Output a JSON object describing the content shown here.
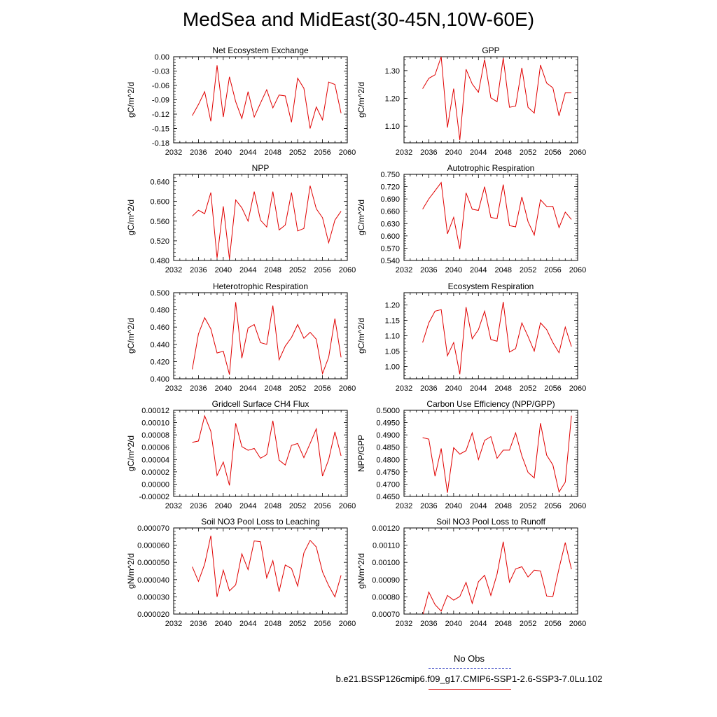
{
  "title": "MedSea and MidEast(30-45N,10W-60E)",
  "legend": {
    "obs_label": "No Obs",
    "run_label": "b.e21.BSSP126cmip6.f09_g17.CMIP6-SSP1-2.6-SSP3-7.0Lu.102",
    "obs_color": "#4a55c8",
    "run_color": "#e00000"
  },
  "chart_data": [
    {
      "type": "line",
      "title": "Net Ecosystem Exchange",
      "ylabel": "gC/m^2/d",
      "xlim": [
        2032,
        2060
      ],
      "ylim": [
        -0.18,
        0.0
      ],
      "xticks": [
        "2032",
        "2036",
        "2040",
        "2044",
        "2048",
        "2052",
        "2056",
        "2060"
      ],
      "yticks": [
        "0.00",
        "-0.03",
        "-0.06",
        "-0.09",
        "-0.12",
        "-0.15",
        "-0.18"
      ],
      "x": [
        2035,
        2036,
        2037,
        2038,
        2039,
        2040,
        2041,
        2042,
        2043,
        2044,
        2045,
        2046,
        2047,
        2048,
        2049,
        2050,
        2051,
        2052,
        2053,
        2054,
        2055,
        2056,
        2057,
        2058,
        2059
      ],
      "y": [
        -0.123,
        -0.1,
        -0.073,
        -0.135,
        -0.018,
        -0.126,
        -0.042,
        -0.094,
        -0.129,
        -0.073,
        -0.126,
        -0.097,
        -0.069,
        -0.107,
        -0.08,
        -0.082,
        -0.137,
        -0.045,
        -0.066,
        -0.15,
        -0.105,
        -0.132,
        -0.053,
        -0.058,
        -0.118
      ]
    },
    {
      "type": "line",
      "title": "GPP",
      "ylabel": "gC/m^2/d",
      "xlim": [
        2032,
        2060
      ],
      "ylim": [
        1.04,
        1.35
      ],
      "xticks": [
        "2032",
        "2036",
        "2040",
        "2044",
        "2048",
        "2052",
        "2056",
        "2060"
      ],
      "yticks": [
        "1.30",
        "1.20",
        "1.10"
      ],
      "ytick_values": [
        1.3,
        1.2,
        1.1
      ],
      "x": [
        2035,
        2036,
        2037,
        2038,
        2039,
        2040,
        2041,
        2042,
        2043,
        2044,
        2045,
        2046,
        2047,
        2048,
        2049,
        2050,
        2051,
        2052,
        2053,
        2054,
        2055,
        2056,
        2057,
        2058,
        2059
      ],
      "y": [
        1.235,
        1.272,
        1.285,
        1.35,
        1.095,
        1.235,
        1.05,
        1.305,
        1.252,
        1.222,
        1.34,
        1.202,
        1.188,
        1.345,
        1.168,
        1.172,
        1.31,
        1.168,
        1.147,
        1.32,
        1.255,
        1.238,
        1.137,
        1.22,
        1.22
      ]
    },
    {
      "type": "line",
      "title": "NPP",
      "ylabel": "gC/m^2/d",
      "xlim": [
        2032,
        2060
      ],
      "ylim": [
        0.48,
        0.655
      ],
      "xticks": [
        "2032",
        "2036",
        "2040",
        "2044",
        "2048",
        "2052",
        "2056",
        "2060"
      ],
      "yticks": [
        "0.640",
        "0.600",
        "0.560",
        "0.520",
        "0.480"
      ],
      "ytick_values": [
        0.64,
        0.6,
        0.56,
        0.52,
        0.48
      ],
      "x": [
        2035,
        2036,
        2037,
        2038,
        2039,
        2040,
        2041,
        2042,
        2043,
        2044,
        2045,
        2046,
        2047,
        2048,
        2049,
        2050,
        2051,
        2052,
        2053,
        2054,
        2055,
        2056,
        2057,
        2058,
        2059
      ],
      "y": [
        0.57,
        0.582,
        0.575,
        0.618,
        0.485,
        0.59,
        0.483,
        0.603,
        0.587,
        0.56,
        0.62,
        0.562,
        0.548,
        0.62,
        0.542,
        0.552,
        0.618,
        0.54,
        0.545,
        0.632,
        0.585,
        0.567,
        0.516,
        0.562,
        0.58
      ]
    },
    {
      "type": "line",
      "title": "Autotrophic Respiration",
      "ylabel": "gC/m^2/d",
      "xlim": [
        2032,
        2060
      ],
      "ylim": [
        0.54,
        0.75
      ],
      "xticks": [
        "2032",
        "2036",
        "2040",
        "2044",
        "2048",
        "2052",
        "2056",
        "2060"
      ],
      "yticks": [
        "0.750",
        "0.720",
        "0.690",
        "0.660",
        "0.630",
        "0.600",
        "0.570",
        "0.540"
      ],
      "ytick_values": [
        0.75,
        0.72,
        0.69,
        0.66,
        0.63,
        0.6,
        0.57,
        0.54
      ],
      "x": [
        2035,
        2036,
        2037,
        2038,
        2039,
        2040,
        2041,
        2042,
        2043,
        2044,
        2045,
        2046,
        2047,
        2048,
        2049,
        2050,
        2051,
        2052,
        2053,
        2054,
        2055,
        2056,
        2057,
        2058,
        2059
      ],
      "y": [
        0.665,
        0.69,
        0.71,
        0.73,
        0.605,
        0.645,
        0.568,
        0.705,
        0.665,
        0.662,
        0.72,
        0.645,
        0.642,
        0.725,
        0.625,
        0.622,
        0.695,
        0.635,
        0.602,
        0.688,
        0.672,
        0.672,
        0.62,
        0.658,
        0.64
      ]
    },
    {
      "type": "line",
      "title": "Heterotrophic Respiration",
      "ylabel": "gC/m^2/d",
      "xlim": [
        2032,
        2060
      ],
      "ylim": [
        0.4,
        0.5
      ],
      "xticks": [
        "2032",
        "2036",
        "2040",
        "2044",
        "2048",
        "2052",
        "2056",
        "2060"
      ],
      "yticks": [
        "0.500",
        "0.480",
        "0.460",
        "0.440",
        "0.420",
        "0.400"
      ],
      "ytick_values": [
        0.5,
        0.48,
        0.46,
        0.44,
        0.42,
        0.4
      ],
      "x": [
        2035,
        2036,
        2037,
        2038,
        2039,
        2040,
        2041,
        2042,
        2043,
        2044,
        2045,
        2046,
        2047,
        2048,
        2049,
        2050,
        2051,
        2052,
        2053,
        2054,
        2055,
        2056,
        2057,
        2058,
        2059
      ],
      "y": [
        0.411,
        0.452,
        0.471,
        0.458,
        0.43,
        0.432,
        0.405,
        0.489,
        0.424,
        0.459,
        0.463,
        0.442,
        0.44,
        0.485,
        0.422,
        0.438,
        0.448,
        0.463,
        0.447,
        0.454,
        0.446,
        0.406,
        0.425,
        0.47,
        0.425
      ]
    },
    {
      "type": "line",
      "title": "Ecosystem Respiration",
      "ylabel": "gC/m^2/d",
      "xlim": [
        2032,
        2060
      ],
      "ylim": [
        0.96,
        1.24
      ],
      "xticks": [
        "2032",
        "2036",
        "2040",
        "2044",
        "2048",
        "2052",
        "2056",
        "2060"
      ],
      "yticks": [
        "1.20",
        "1.15",
        "1.10",
        "1.05",
        "1.00"
      ],
      "ytick_values": [
        1.2,
        1.15,
        1.1,
        1.05,
        1.0
      ],
      "x": [
        2035,
        2036,
        2037,
        2038,
        2039,
        2040,
        2041,
        2042,
        2043,
        2044,
        2045,
        2046,
        2047,
        2048,
        2049,
        2050,
        2051,
        2052,
        2053,
        2054,
        2055,
        2056,
        2057,
        2058,
        2059
      ],
      "y": [
        1.078,
        1.142,
        1.18,
        1.185,
        1.035,
        1.078,
        0.975,
        1.193,
        1.09,
        1.12,
        1.18,
        1.088,
        1.082,
        1.21,
        1.047,
        1.058,
        1.142,
        1.098,
        1.05,
        1.142,
        1.12,
        1.078,
        1.045,
        1.128,
        1.065
      ]
    },
    {
      "type": "line",
      "title": "Gridcell Surface CH4 Flux",
      "ylabel": "gC/m^2/d",
      "xlim": [
        2032,
        2060
      ],
      "ylim": [
        -2e-05,
        0.00012
      ],
      "xticks": [
        "2032",
        "2036",
        "2040",
        "2044",
        "2048",
        "2052",
        "2056",
        "2060"
      ],
      "yticks": [
        "0.00012",
        "0.00010",
        "0.00008",
        "0.00006",
        "0.00004",
        "0.00002",
        "0.00000",
        "-0.00002"
      ],
      "ytick_values": [
        0.00012,
        0.0001,
        8e-05,
        6e-05,
        4e-05,
        2e-05,
        0.0,
        -2e-05
      ],
      "x": [
        2035,
        2036,
        2037,
        2038,
        2039,
        2040,
        2041,
        2042,
        2043,
        2044,
        2045,
        2046,
        2047,
        2048,
        2049,
        2050,
        2051,
        2052,
        2053,
        2054,
        2055,
        2056,
        2057,
        2058,
        2059
      ],
      "y": [
        6.8e-05,
        7e-05,
        0.000111,
        8.6e-05,
        1.4e-05,
        3.6e-05,
        -2e-06,
        9.9e-05,
        6.1e-05,
        5.5e-05,
        5.8e-05,
        4.2e-05,
        4.8e-05,
        0.000103,
        3.9e-05,
        3.1e-05,
        6.3e-05,
        6.6e-05,
        4.3e-05,
        6.6e-05,
        9e-05,
        1.3e-05,
        4e-05,
        8.5e-05,
        4.6e-05
      ]
    },
    {
      "type": "line",
      "title": "Carbon Use Efficiency (NPP/GPP)",
      "ylabel": "NPP/GPP",
      "xlim": [
        2032,
        2060
      ],
      "ylim": [
        0.465,
        0.5
      ],
      "xticks": [
        "2032",
        "2036",
        "2040",
        "2044",
        "2048",
        "2052",
        "2056",
        "2060"
      ],
      "yticks": [
        "0.5000",
        "0.4950",
        "0.4900",
        "0.4850",
        "0.4800",
        "0.4750",
        "0.4700",
        "0.4650"
      ],
      "ytick_values": [
        0.5,
        0.495,
        0.49,
        0.485,
        0.48,
        0.475,
        0.47,
        0.465
      ],
      "x": [
        2035,
        2036,
        2037,
        2038,
        2039,
        2040,
        2041,
        2042,
        2043,
        2044,
        2045,
        2046,
        2047,
        2048,
        2049,
        2050,
        2051,
        2052,
        2053,
        2054,
        2055,
        2056,
        2057,
        2058,
        2059
      ],
      "y": [
        0.4889,
        0.4883,
        0.4732,
        0.4845,
        0.4665,
        0.4848,
        0.4822,
        0.4836,
        0.4908,
        0.48,
        0.4878,
        0.4893,
        0.4805,
        0.4838,
        0.4838,
        0.4908,
        0.4815,
        0.4748,
        0.4725,
        0.4948,
        0.4818,
        0.4778,
        0.4668,
        0.4708,
        0.4978
      ]
    },
    {
      "type": "line",
      "title": "Soil NO3 Pool Loss to Leaching",
      "ylabel": "gN/m^2/d",
      "xlim": [
        2032,
        2060
      ],
      "ylim": [
        2e-05,
        7e-05
      ],
      "xticks": [
        "2032",
        "2036",
        "2040",
        "2044",
        "2048",
        "2052",
        "2056",
        "2060"
      ],
      "yticks": [
        "0.000070",
        "0.000060",
        "0.000050",
        "0.000040",
        "0.000030",
        "0.000020"
      ],
      "ytick_values": [
        7e-05,
        6e-05,
        5e-05,
        4e-05,
        3e-05,
        2e-05
      ],
      "x": [
        2035,
        2036,
        2037,
        2038,
        2039,
        2040,
        2041,
        2042,
        2043,
        2044,
        2045,
        2046,
        2047,
        2048,
        2049,
        2050,
        2051,
        2052,
        2053,
        2054,
        2055,
        2056,
        2057,
        2058,
        2059
      ],
      "y": [
        4.75e-05,
        3.9e-05,
        4.9e-05,
        6.55e-05,
        3e-05,
        4.55e-05,
        3.35e-05,
        3.7e-05,
        5.5e-05,
        4.58e-05,
        6.25e-05,
        6.2e-05,
        4.1e-05,
        5.1e-05,
        3.3e-05,
        4.85e-05,
        4.65e-05,
        3.62e-05,
        5.55e-05,
        6.28e-05,
        5.9e-05,
        4.45e-05,
        3.65e-05,
        3e-05,
        4.25e-05
      ]
    },
    {
      "type": "line",
      "title": "Soil NO3 Pool Loss to Runoff",
      "ylabel": "gN/m^2/d",
      "xlim": [
        2032,
        2060
      ],
      "ylim": [
        0.0007,
        0.0012
      ],
      "xticks": [
        "2032",
        "2036",
        "2040",
        "2044",
        "2048",
        "2052",
        "2056",
        "2060"
      ],
      "yticks": [
        "0.00120",
        "0.00110",
        "0.00100",
        "0.00090",
        "0.00080",
        "0.00070"
      ],
      "ytick_values": [
        0.0012,
        0.0011,
        0.001,
        0.0009,
        0.0008,
        0.0007
      ],
      "x": [
        2035,
        2036,
        2037,
        2038,
        2039,
        2040,
        2041,
        2042,
        2043,
        2044,
        2045,
        2046,
        2047,
        2048,
        2049,
        2050,
        2051,
        2052,
        2053,
        2054,
        2055,
        2056,
        2057,
        2058,
        2059
      ],
      "y": [
        0.00069,
        0.000828,
        0.000755,
        0.000717,
        0.000808,
        0.000781,
        0.000802,
        0.000884,
        0.000762,
        0.000888,
        0.000925,
        0.000808,
        0.000932,
        0.00112,
        0.000885,
        0.000962,
        0.000975,
        0.000915,
        0.000955,
        0.00095,
        0.000805,
        0.000802,
        0.000965,
        0.001115,
        0.00096
      ]
    }
  ]
}
